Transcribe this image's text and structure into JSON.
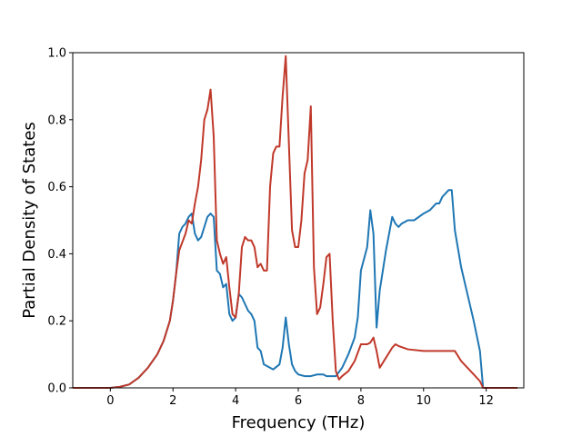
{
  "chart_data": {
    "type": "line",
    "title": "",
    "xlabel": "Frequency (THz)",
    "ylabel": "Partial Density of States",
    "xlim": [
      -1.2,
      13.2
    ],
    "ylim": [
      0.0,
      1.0
    ],
    "xticks": [
      0,
      2,
      4,
      6,
      8,
      10,
      12
    ],
    "yticks": [
      0.0,
      0.2,
      0.4,
      0.6,
      0.8,
      1.0
    ],
    "xtick_labels": [
      "0",
      "2",
      "4",
      "6",
      "8",
      "10",
      "12"
    ],
    "ytick_labels": [
      "0.0",
      "0.2",
      "0.4",
      "0.6",
      "0.8",
      "1.0"
    ],
    "grid": false,
    "legend": null,
    "series": [
      {
        "color": "#1f77b4",
        "x": [
          -1.2,
          0.0,
          0.3,
          0.6,
          0.9,
          1.2,
          1.5,
          1.7,
          1.9,
          2.0,
          2.1,
          2.2,
          2.3,
          2.4,
          2.5,
          2.6,
          2.7,
          2.8,
          2.9,
          3.0,
          3.1,
          3.2,
          3.3,
          3.4,
          3.5,
          3.6,
          3.7,
          3.8,
          3.9,
          4.0,
          4.1,
          4.2,
          4.3,
          4.4,
          4.5,
          4.6,
          4.7,
          4.8,
          4.9,
          5.0,
          5.2,
          5.4,
          5.5,
          5.6,
          5.7,
          5.8,
          5.9,
          6.0,
          6.2,
          6.4,
          6.6,
          6.8,
          6.9,
          7.0,
          7.2,
          7.4,
          7.6,
          7.8,
          7.9,
          8.0,
          8.2,
          8.3,
          8.4,
          8.5,
          8.6,
          8.8,
          9.0,
          9.1,
          9.2,
          9.3,
          9.5,
          9.7,
          10.0,
          10.2,
          10.4,
          10.5,
          10.6,
          10.8,
          10.9,
          11.0,
          11.2,
          11.4,
          11.6,
          11.8,
          11.9
        ],
        "y": [
          0.0,
          0.0,
          0.003,
          0.01,
          0.03,
          0.06,
          0.1,
          0.14,
          0.2,
          0.26,
          0.34,
          0.46,
          0.48,
          0.49,
          0.51,
          0.52,
          0.46,
          0.44,
          0.45,
          0.48,
          0.51,
          0.52,
          0.51,
          0.35,
          0.34,
          0.3,
          0.31,
          0.22,
          0.2,
          0.21,
          0.28,
          0.27,
          0.25,
          0.23,
          0.22,
          0.2,
          0.12,
          0.11,
          0.07,
          0.065,
          0.055,
          0.07,
          0.12,
          0.21,
          0.13,
          0.07,
          0.05,
          0.04,
          0.035,
          0.035,
          0.04,
          0.04,
          0.035,
          0.035,
          0.035,
          0.06,
          0.1,
          0.15,
          0.21,
          0.35,
          0.42,
          0.53,
          0.46,
          0.18,
          0.29,
          0.41,
          0.51,
          0.49,
          0.48,
          0.49,
          0.5,
          0.5,
          0.52,
          0.53,
          0.55,
          0.55,
          0.57,
          0.59,
          0.59,
          0.47,
          0.36,
          0.28,
          0.2,
          0.11,
          0.0
        ]
      },
      {
        "color": "#c0392b",
        "x": [
          -1.2,
          0.0,
          0.3,
          0.6,
          0.9,
          1.2,
          1.5,
          1.7,
          1.9,
          2.0,
          2.1,
          2.2,
          2.4,
          2.5,
          2.6,
          2.7,
          2.8,
          2.9,
          3.0,
          3.1,
          3.2,
          3.3,
          3.4,
          3.5,
          3.6,
          3.7,
          3.8,
          3.9,
          4.0,
          4.1,
          4.2,
          4.3,
          4.4,
          4.5,
          4.6,
          4.7,
          4.8,
          4.9,
          5.0,
          5.1,
          5.2,
          5.3,
          5.4,
          5.5,
          5.6,
          5.7,
          5.8,
          5.9,
          6.0,
          6.1,
          6.2,
          6.3,
          6.4,
          6.5,
          6.6,
          6.7,
          6.8,
          6.9,
          7.0,
          7.1,
          7.2,
          7.3,
          7.4,
          7.6,
          7.8,
          8.0,
          8.2,
          8.3,
          8.4,
          8.5,
          8.6,
          8.8,
          9.0,
          9.1,
          9.2,
          9.5,
          10.0,
          10.5,
          10.9,
          11.0,
          11.2,
          11.4,
          11.6,
          11.8,
          11.9,
          13.0
        ],
        "y": [
          0.0,
          0.0,
          0.003,
          0.01,
          0.03,
          0.06,
          0.1,
          0.14,
          0.2,
          0.26,
          0.34,
          0.41,
          0.46,
          0.5,
          0.49,
          0.55,
          0.6,
          0.68,
          0.8,
          0.83,
          0.89,
          0.75,
          0.44,
          0.4,
          0.37,
          0.39,
          0.3,
          0.22,
          0.21,
          0.28,
          0.42,
          0.45,
          0.44,
          0.44,
          0.42,
          0.36,
          0.37,
          0.35,
          0.35,
          0.6,
          0.7,
          0.72,
          0.72,
          0.87,
          0.99,
          0.73,
          0.47,
          0.42,
          0.42,
          0.5,
          0.64,
          0.68,
          0.84,
          0.36,
          0.22,
          0.24,
          0.31,
          0.39,
          0.4,
          0.2,
          0.05,
          0.025,
          0.035,
          0.05,
          0.08,
          0.13,
          0.13,
          0.135,
          0.15,
          0.11,
          0.06,
          0.09,
          0.12,
          0.13,
          0.125,
          0.115,
          0.11,
          0.11,
          0.11,
          0.11,
          0.08,
          0.06,
          0.04,
          0.02,
          0.0,
          0.0
        ]
      }
    ]
  }
}
